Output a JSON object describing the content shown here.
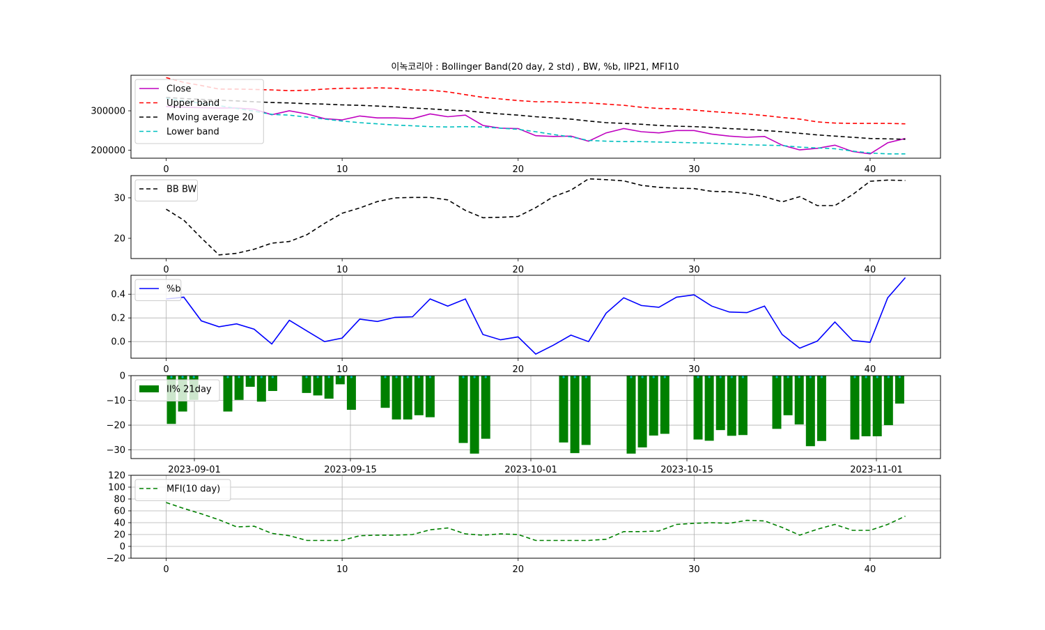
{
  "chart_data": {
    "title": "이녹코리아 : Bollinger Band(20 day, 2 std) , BW, %b, IIP21, MFI10",
    "panels": [
      {
        "type": "line",
        "name": "price",
        "xlim": [
          -2,
          44
        ],
        "ylim": [
          180000,
          390000
        ],
        "xticks": [
          0,
          10,
          20,
          30,
          40
        ],
        "yticks": [
          200000,
          300000
        ],
        "legend_position": "top-left",
        "series": [
          {
            "name": "Close",
            "color": "#bf00bf",
            "dash": "",
            "values": [
              311000,
              309000,
              308000,
              307000,
              307000,
              304000,
              290000,
              300000,
              292000,
              280000,
              277000,
              287000,
              282000,
              282000,
              280000,
              292000,
              285000,
              289000,
              263000,
              256000,
              255000,
              237000,
              235000,
              236000,
              223000,
              244000,
              255000,
              247000,
              244000,
              250000,
              250000,
              241000,
              236000,
              233000,
              235000,
              213000,
              201000,
              205000,
              213000,
              197000,
              191000,
              219000,
              230000
            ]
          },
          {
            "name": "Upper band",
            "color": "#ff0000",
            "dash": "6,4",
            "values": [
              384000,
              372000,
              364000,
              355000,
              355000,
              354000,
              353000,
              351000,
              352000,
              355000,
              357000,
              357000,
              358000,
              357000,
              353000,
              352000,
              348000,
              341000,
              334000,
              330000,
              326000,
              323000,
              323000,
              321000,
              320000,
              317000,
              314000,
              309000,
              306000,
              305000,
              302000,
              298000,
              295000,
              292000,
              288000,
              283000,
              279000,
              272000,
              269000,
              268000,
              268000,
              268000,
              267000
            ]
          },
          {
            "name": "Moving average 20",
            "color": "#000000",
            "dash": "6,4",
            "values": [
              334000,
              331000,
              329000,
              327000,
              325000,
              323000,
              321000,
              320000,
              318000,
              317000,
              315000,
              314000,
              312000,
              310000,
              307000,
              305000,
              302000,
              300000,
              296000,
              292000,
              289000,
              285000,
              282000,
              279000,
              274000,
              270000,
              268000,
              266000,
              263000,
              261000,
              260000,
              258000,
              255000,
              253000,
              250000,
              247000,
              243000,
              239000,
              236000,
              233000,
              230000,
              229000,
              228000
            ]
          },
          {
            "name": "Lower band",
            "color": "#00bfbf",
            "dash": "6,4",
            "values": [
              332000,
              325000,
              319000,
              313000,
              306000,
              299000,
              291000,
              289000,
              284000,
              279000,
              274000,
              270000,
              267000,
              264000,
              262000,
              260000,
              259000,
              260000,
              259000,
              256000,
              253000,
              247000,
              240000,
              234000,
              225000,
              223000,
              222000,
              222000,
              221000,
              220000,
              219000,
              218000,
              216000,
              214000,
              213000,
              212000,
              208000,
              206000,
              204000,
              198000,
              193000,
              191000,
              191000
            ]
          }
        ]
      },
      {
        "type": "line",
        "name": "bandwidth",
        "xlim": [
          -2,
          44
        ],
        "ylim": [
          15,
          35.5
        ],
        "xticks": [
          0,
          10,
          20,
          30,
          40
        ],
        "yticks": [
          20,
          30
        ],
        "legend_position": "top-left",
        "series": [
          {
            "name": "BB BW",
            "color": "#000000",
            "dash": "6,4",
            "values": [
              27.2,
              24.5,
              20.1,
              15.9,
              16.3,
              17.3,
              18.8,
              19.2,
              20.9,
              23.7,
              26.2,
              27.5,
              29.1,
              30.0,
              30.1,
              30.1,
              29.5,
              26.9,
              25.1,
              25.2,
              25.4,
              27.6,
              30.3,
              31.9,
              34.7,
              34.5,
              34.2,
              33.1,
              32.6,
              32.4,
              32.3,
              31.6,
              31.5,
              31.1,
              30.3,
              29.0,
              30.3,
              28.1,
              28.1,
              30.8,
              34.1,
              34.4,
              34.3
            ]
          }
        ]
      },
      {
        "type": "line",
        "name": "percent_b",
        "xlim": [
          -2,
          44
        ],
        "ylim": [
          -0.14,
          0.56
        ],
        "xticks": [
          0,
          10,
          20,
          30,
          40
        ],
        "yticks": [
          0.0,
          0.2,
          0.4
        ],
        "ytick_labels": [
          "0.0",
          "0.2",
          "0.4"
        ],
        "grid": true,
        "legend_position": "top-left",
        "series": [
          {
            "name": "%b",
            "color": "#0000ff",
            "dash": "",
            "values": [
              0.36,
              0.375,
              0.175,
              0.125,
              0.15,
              0.105,
              -0.02,
              0.18,
              0.09,
              0.0,
              0.03,
              0.19,
              0.17,
              0.205,
              0.21,
              0.36,
              0.3,
              0.36,
              0.06,
              0.015,
              0.04,
              -0.105,
              -0.03,
              0.055,
              0.0,
              0.24,
              0.37,
              0.305,
              0.29,
              0.375,
              0.395,
              0.3,
              0.25,
              0.245,
              0.3,
              0.06,
              -0.055,
              0.005,
              0.165,
              0.01,
              -0.005,
              0.37,
              0.54
            ]
          }
        ]
      },
      {
        "type": "bar",
        "name": "ii_percent",
        "date_axis": true,
        "ylim": [
          -33.5,
          0
        ],
        "yticks": [
          0,
          -10,
          -20,
          -30
        ],
        "xtick_labels": [
          "2023-09-01",
          "2023-09-15",
          "2023-10-01",
          "2023-10-15",
          "2023-11-01"
        ],
        "grid": true,
        "legend_position": "top-left",
        "series": [
          {
            "name": "II% 21day",
            "color": "#008000",
            "values": [
              -19.5,
              -14.5,
              -9.8,
              -14.5,
              -9.8,
              -4.5,
              -10.5,
              -6.2,
              -7.0,
              -8.0,
              -9.3,
              -3.5,
              -13.8,
              -13.0,
              -17.7,
              -17.7,
              -16.0,
              -16.8,
              -27.2,
              -31.5,
              -25.5,
              -27.0,
              -31.3,
              -28.0,
              -31.5,
              -29.0,
              -24.2,
              -23.5,
              -25.8,
              -26.3,
              -22.0,
              -24.3,
              -24.0,
              -21.5,
              -16.0,
              -19.7,
              -28.5,
              -26.4,
              -25.8,
              -24.5,
              -24.5,
              -20.0,
              -11.3
            ]
          }
        ]
      },
      {
        "type": "line",
        "name": "mfi",
        "xlim": [
          -2,
          44
        ],
        "ylim": [
          -20,
          120
        ],
        "xticks": [
          0,
          10,
          20,
          30,
          40
        ],
        "yticks": [
          -20,
          0,
          20,
          40,
          60,
          80,
          100,
          120
        ],
        "grid": true,
        "legend_position": "top-left",
        "series": [
          {
            "name": "MFI(10 day)",
            "color": "#008000",
            "dash": "6,4",
            "values": [
              74,
              64,
              55,
              45,
              33,
              34,
              22,
              18,
              10,
              10,
              10,
              18,
              19,
              19,
              20,
              28,
              31,
              21,
              19,
              21,
              20,
              10,
              10,
              10,
              10,
              12,
              25,
              25,
              26,
              37,
              39,
              40,
              39,
              44,
              43,
              32,
              19,
              29,
              37,
              27,
              27,
              37,
              51
            ]
          }
        ]
      }
    ]
  }
}
